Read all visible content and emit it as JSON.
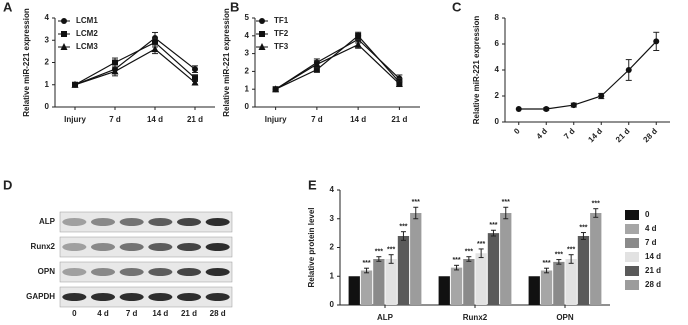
{
  "chart_data": [
    {
      "type": "line",
      "panel": "A",
      "y_label": "Relative miR-221 expression",
      "categories": [
        "Injury",
        "7 d",
        "14 d",
        "21 d"
      ],
      "series": [
        {
          "name": "LCM1",
          "marker": "circle",
          "color": "#111111",
          "values": [
            1,
            1.7,
            3.1,
            1.7
          ],
          "errors": [
            0,
            0.2,
            0.25,
            0.15
          ]
        },
        {
          "name": "LCM2",
          "marker": "square",
          "color": "#111111",
          "values": [
            1,
            2.0,
            2.9,
            1.3
          ],
          "errors": [
            0,
            0.2,
            0.2,
            0.15
          ]
        },
        {
          "name": "LCM3",
          "marker": "triangle",
          "color": "#111111",
          "values": [
            1,
            1.6,
            2.6,
            1.1
          ],
          "errors": [
            0,
            0.2,
            0.2,
            0.1
          ]
        }
      ],
      "ylim": [
        0,
        4
      ],
      "yticks": [
        0,
        1,
        2,
        3,
        4
      ]
    },
    {
      "type": "line",
      "panel": "B",
      "y_label": "Relative miR-221 expression",
      "categories": [
        "Injury",
        "7 d",
        "14 d",
        "21 d"
      ],
      "series": [
        {
          "name": "TF1",
          "marker": "circle",
          "color": "#111111",
          "values": [
            1,
            2.5,
            3.8,
            1.6
          ],
          "errors": [
            0,
            0.2,
            0.2,
            0.2
          ]
        },
        {
          "name": "TF2",
          "marker": "square",
          "color": "#111111",
          "values": [
            1,
            2.1,
            4.0,
            1.4
          ],
          "errors": [
            0,
            0.15,
            0.2,
            0.2
          ]
        },
        {
          "name": "TF3",
          "marker": "triangle",
          "color": "#111111",
          "values": [
            1,
            2.4,
            3.5,
            1.3
          ],
          "errors": [
            0,
            0.2,
            0.2,
            0.15
          ]
        }
      ],
      "ylim": [
        0,
        5
      ],
      "yticks": [
        0,
        1,
        2,
        3,
        4,
        5
      ]
    },
    {
      "type": "line",
      "panel": "C",
      "y_label": "Relative miR-221 expression",
      "categories": [
        "0",
        "4 d",
        "7 d",
        "14 d",
        "21 d",
        "28 d"
      ],
      "values": [
        1,
        1,
        1.3,
        2,
        4,
        6.2
      ],
      "errors": [
        0,
        0.1,
        0.15,
        0.2,
        0.8,
        0.7
      ],
      "marker": "circle",
      "color": "#111111",
      "ylim": [
        0,
        8
      ],
      "yticks": [
        0,
        2,
        4,
        6,
        8
      ]
    },
    {
      "type": "blot",
      "panel": "D",
      "rows": [
        "ALP",
        "Runx2",
        "OPN",
        "GAPDH"
      ],
      "lanes": [
        "0",
        "4 d",
        "7 d",
        "14 d",
        "21 d",
        "28 d"
      ]
    },
    {
      "type": "bar",
      "panel": "E",
      "y_label": "Relative protein level",
      "categories": [
        "ALP",
        "Runx2",
        "OPN"
      ],
      "series": [
        {
          "name": "0",
          "color": "#111111",
          "values": [
            1,
            1,
            1
          ],
          "errors": [
            0,
            0,
            0
          ]
        },
        {
          "name": "4 d",
          "color": "#a6a6a6",
          "values": [
            1.2,
            1.3,
            1.2
          ],
          "errors": [
            0.08,
            0.08,
            0.08
          ],
          "significance": [
            "***",
            "***",
            "***"
          ]
        },
        {
          "name": "7 d",
          "color": "#8a8a8a",
          "values": [
            1.6,
            1.6,
            1.5
          ],
          "errors": [
            0.08,
            0.08,
            0.08
          ],
          "significance": [
            "***",
            "***",
            "***"
          ]
        },
        {
          "name": "14 d",
          "color": "#e2e2e2",
          "values": [
            1.6,
            1.8,
            1.6
          ],
          "errors": [
            0.15,
            0.15,
            0.15
          ],
          "significance": [
            "***",
            "***",
            "***"
          ]
        },
        {
          "name": "21 d",
          "color": "#5a5a5a",
          "values": [
            2.4,
            2.5,
            2.4
          ],
          "errors": [
            0.15,
            0.1,
            0.12
          ],
          "significance": [
            "***",
            "***",
            "***"
          ]
        },
        {
          "name": "28 d",
          "color": "#9c9c9c",
          "values": [
            3.2,
            3.2,
            3.2
          ],
          "errors": [
            0.2,
            0.2,
            0.15
          ],
          "significance": [
            "***",
            "***",
            "***"
          ]
        }
      ],
      "ylim": [
        0,
        4
      ],
      "yticks": [
        0,
        1,
        2,
        3,
        4
      ]
    }
  ]
}
